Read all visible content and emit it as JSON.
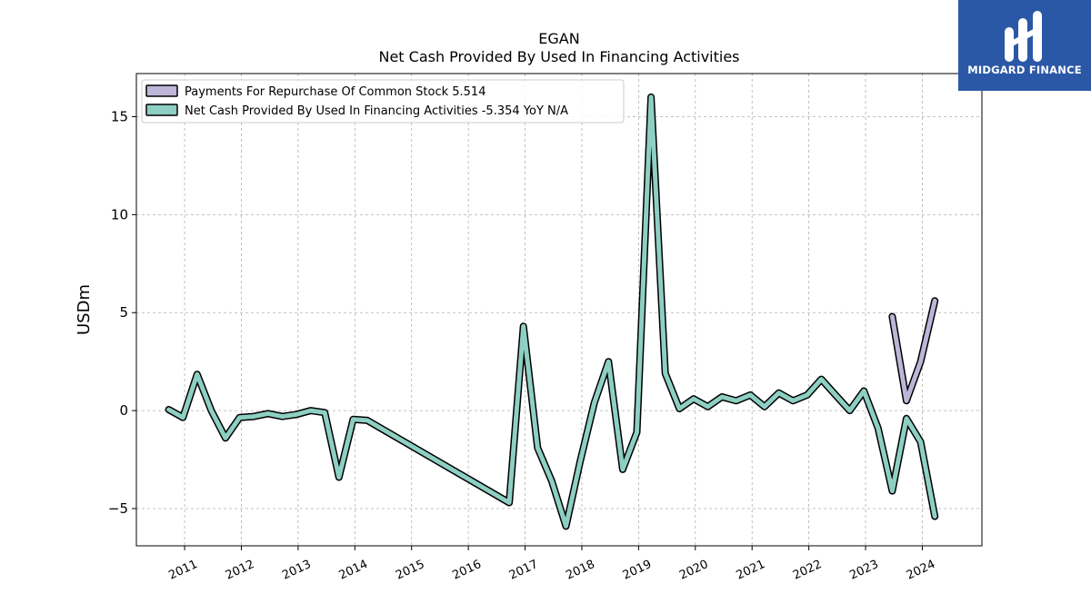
{
  "brand": {
    "name": "MIDGARD FINANCE",
    "background": "#2b58a6"
  },
  "chart_data": {
    "type": "line",
    "title": "EGAN",
    "subtitle": "Net Cash Provided By Used In Financing Activities",
    "xlabel": "",
    "ylabel": "USDm",
    "xlim": [
      2010.15,
      2025.05
    ],
    "ylim": [
      -6.9,
      17.2
    ],
    "grid": true,
    "legend_position": "top-left",
    "x_ticks": [
      2011,
      2012,
      2013,
      2014,
      2015,
      2016,
      2017,
      2018,
      2019,
      2020,
      2021,
      2022,
      2023,
      2024
    ],
    "y_ticks": [
      -5,
      0,
      5,
      10,
      15
    ],
    "legend": [
      "Payments For Repurchase Of Common Stock  5.514",
      "Net Cash Provided By Used In Financing Activities  -5.354 YoY N/A"
    ],
    "series": [
      {
        "name": "Payments For Repurchase Of Common Stock",
        "color": "#bdb6d8",
        "x": [
          2023.47,
          2023.72,
          2023.97,
          2024.22
        ],
        "y": [
          4.8,
          0.5,
          2.5,
          5.6
        ]
      },
      {
        "name": "Net Cash Provided By Used In Financing Activities",
        "color": "#8ecfc3",
        "x": [
          2010.72,
          2010.97,
          2011.22,
          2011.47,
          2011.72,
          2011.97,
          2012.22,
          2012.47,
          2012.72,
          2012.97,
          2013.22,
          2013.47,
          2013.72,
          2013.97,
          2014.22,
          2016.72,
          2016.97,
          2017.22,
          2017.47,
          2017.72,
          2017.97,
          2018.22,
          2018.47,
          2018.72,
          2018.97,
          2019.22,
          2019.47,
          2019.72,
          2019.97,
          2020.22,
          2020.47,
          2020.72,
          2020.97,
          2021.22,
          2021.47,
          2021.72,
          2021.97,
          2022.22,
          2022.47,
          2022.72,
          2022.97,
          2023.22,
          2023.47,
          2023.72,
          2023.97,
          2024.22
        ],
        "y": [
          0.05,
          -0.35,
          1.85,
          0.0,
          -1.4,
          -0.35,
          -0.3,
          -0.15,
          -0.3,
          -0.2,
          0.0,
          -0.1,
          -3.4,
          -0.45,
          -0.5,
          -4.7,
          4.3,
          -1.9,
          -3.6,
          -5.9,
          -2.6,
          0.4,
          2.5,
          -3.0,
          -1.1,
          16.0,
          1.9,
          0.1,
          0.6,
          0.2,
          0.7,
          0.5,
          0.8,
          0.2,
          0.9,
          0.5,
          0.8,
          1.6,
          0.8,
          0.0,
          1.0,
          -0.9,
          -4.1,
          -0.4,
          -1.6,
          -5.4
        ]
      }
    ]
  }
}
